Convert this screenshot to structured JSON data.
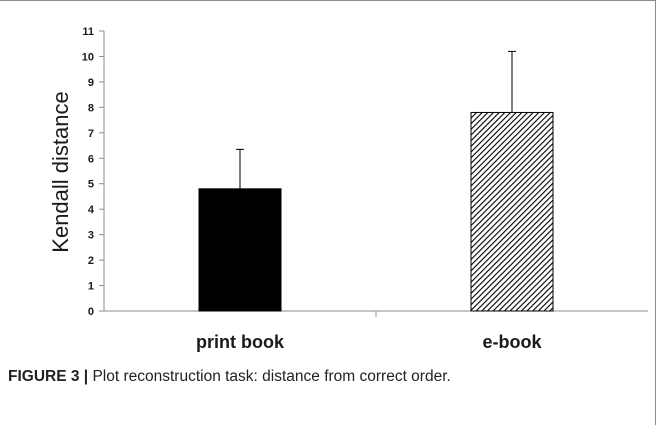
{
  "chart_data": {
    "type": "bar",
    "categories": [
      "print book",
      "e-book"
    ],
    "values": [
      4.8,
      7.8
    ],
    "error_upper": [
      6.35,
      10.2
    ],
    "ylabel": "Kendall distance",
    "xlabel": "",
    "ylim": [
      0,
      11
    ],
    "yticks": [
      "0",
      "1",
      "2",
      "3",
      "4",
      "5",
      "6",
      "7",
      "8",
      "9",
      "10",
      "11"
    ],
    "bar_fills": [
      "solid black",
      "diagonal hatch"
    ],
    "grid": false,
    "legend": "none"
  },
  "caption": {
    "figure_label": "FIGURE 3 |",
    "text": " Plot reconstruction task: distance from correct order."
  },
  "colors": {
    "bar_solid": "#000000",
    "hatch": "#000000",
    "axis": "#8c8c8c"
  }
}
